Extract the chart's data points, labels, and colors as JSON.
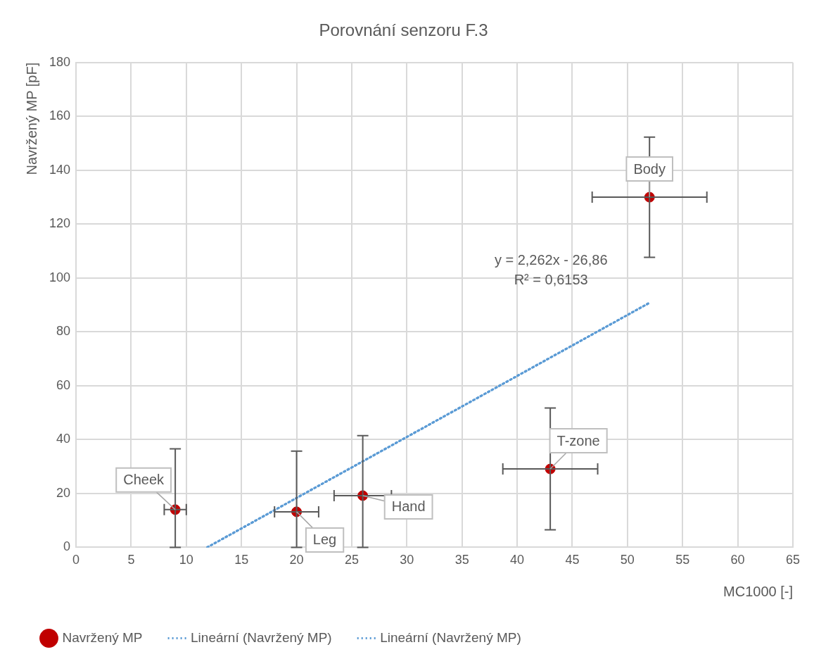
{
  "chart_data": {
    "type": "scatter",
    "title": "Porovnání senzoru F.3",
    "xlabel": "MC1000 [-]",
    "ylabel": "Navržený MP [pF]",
    "xlim": [
      0,
      65
    ],
    "xticks": [
      0,
      5,
      10,
      15,
      20,
      25,
      30,
      35,
      40,
      45,
      50,
      55,
      60,
      65
    ],
    "ylim": [
      0,
      180
    ],
    "yticks": [
      0,
      20,
      40,
      60,
      80,
      100,
      120,
      140,
      160,
      180
    ],
    "grid": true,
    "legend": "bottom",
    "line_style": "dotted",
    "series": [
      {
        "type": "scatter",
        "name": "Navržený MP",
        "color": "#c00000",
        "marker": "circle",
        "x": [
          9,
          20,
          26,
          43,
          52
        ],
        "values": [
          14,
          13.2,
          19.2,
          29.1,
          130
        ],
        "errors": [
          [
            0,
            36.6
          ],
          [
            0,
            35.7
          ],
          [
            0,
            41.5
          ],
          22.6,
          22.3
        ],
        "xerrors": [
          1,
          2,
          2.6,
          4.3,
          5.2
        ]
      },
      {
        "type": "line",
        "name": "Lineární (Navržený MP)",
        "color": "#5b9bd5",
        "marker": "none",
        "x": [
          11.9,
          52
        ],
        "values": [
          0,
          90.8
        ]
      },
      {
        "type": "line",
        "name": "Lineární (Navržený MP)",
        "color": "#5b9bd5",
        "marker": "none",
        "x": [
          11.9,
          52
        ],
        "values": [
          0,
          90.8
        ]
      }
    ],
    "annotations": [
      {
        "text": "Cheek",
        "x": 9,
        "y": 14
      },
      {
        "text": "Leg",
        "x": 20,
        "y": 13.2
      },
      {
        "text": "Hand",
        "x": 26,
        "y": 19.2
      },
      {
        "text": "T-zone",
        "x": 43,
        "y": 29.1
      },
      {
        "text": "Body",
        "x": 52,
        "y": 130
      },
      "y = 2,262x - 26,86",
      "R² = 0,6153"
    ]
  }
}
